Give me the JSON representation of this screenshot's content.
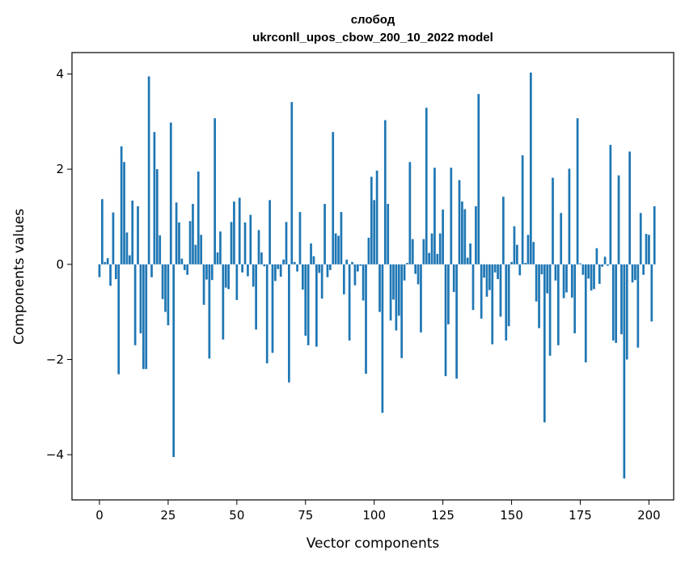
{
  "chart_data": {
    "type": "bar",
    "title": "слобод",
    "subtitle": "ukrconll_upos_cbow_200_10_2022 model",
    "xlabel": "Vector components",
    "ylabel": "Components values",
    "xlim": [
      -10,
      209
    ],
    "ylim": [
      -4.95,
      4.45
    ],
    "xticks": [
      0,
      25,
      50,
      75,
      100,
      125,
      150,
      175,
      200
    ],
    "xtick_labels": [
      "0",
      "25",
      "50",
      "75",
      "100",
      "125",
      "150",
      "175",
      "200"
    ],
    "yticks": [
      -4,
      -2,
      0,
      2,
      4
    ],
    "ytick_labels": [
      "−4",
      "−2",
      "0",
      "2",
      "4"
    ],
    "bar_color": "#1f77b4",
    "grid": false,
    "legend": "none",
    "values": [
      -0.27,
      1.37,
      0.05,
      0.13,
      -0.45,
      1.09,
      -0.31,
      -2.31,
      2.48,
      2.15,
      0.67,
      0.19,
      1.34,
      -1.7,
      1.22,
      -1.45,
      -2.2,
      -2.2,
      3.95,
      -0.27,
      2.78,
      2.0,
      0.61,
      -0.73,
      -1.0,
      -1.28,
      2.98,
      -4.05,
      1.3,
      0.88,
      0.12,
      -0.12,
      -0.22,
      0.91,
      1.27,
      0.41,
      1.95,
      0.62,
      -0.85,
      -0.32,
      -1.98,
      -0.33,
      3.07,
      0.25,
      0.69,
      -1.58,
      -0.49,
      -0.52,
      0.89,
      1.32,
      -0.75,
      1.4,
      -0.17,
      0.88,
      -0.25,
      1.04,
      -0.47,
      -1.37,
      0.72,
      0.25,
      -0.04,
      -2.08,
      1.35,
      -1.86,
      -0.35,
      -0.1,
      -0.26,
      0.1,
      0.89,
      -2.48,
      3.41,
      0.05,
      -0.15,
      1.1,
      -0.53,
      -1.5,
      -1.7,
      0.44,
      0.17,
      -1.73,
      -0.18,
      -0.72,
      1.27,
      -0.27,
      -0.12,
      2.78,
      0.65,
      0.6,
      1.1,
      -0.63,
      0.1,
      -1.6,
      0.05,
      -0.44,
      -0.15,
      -0.03,
      -0.76,
      -2.3,
      0.56,
      1.84,
      1.35,
      1.97,
      -1.0,
      -3.12,
      3.03,
      1.27,
      -1.18,
      -0.74,
      -1.39,
      -1.08,
      -1.97,
      -0.34,
      0.03,
      2.15,
      0.53,
      -0.2,
      -0.42,
      -1.43,
      0.53,
      3.29,
      0.24,
      0.65,
      2.03,
      0.22,
      0.65,
      1.15,
      -2.35,
      -1.26,
      2.03,
      -0.58,
      -2.4,
      1.77,
      1.32,
      1.16,
      0.14,
      0.44,
      -0.96,
      1.22,
      3.58,
      -1.14,
      -0.28,
      -0.68,
      -0.54,
      -1.68,
      -0.17,
      -0.31,
      -1.1,
      1.42,
      -1.6,
      -1.3,
      0.05,
      0.8,
      0.41,
      -0.23,
      2.29,
      0.03,
      0.62,
      4.03,
      0.47,
      -0.78,
      -1.34,
      -0.21,
      -3.32,
      -0.61,
      -1.92,
      1.82,
      -0.34,
      -1.7,
      1.08,
      -0.71,
      -0.59,
      2.01,
      -0.7,
      -1.45,
      3.07,
      0.02,
      -0.22,
      -2.06,
      -0.3,
      -0.55,
      -0.52,
      0.34,
      -0.41,
      -0.05,
      0.16,
      -0.03,
      2.51,
      -1.6,
      -1.65,
      1.87,
      -1.47,
      -4.5,
      -2.0,
      2.37,
      -0.38,
      -0.33,
      -1.75,
      1.08,
      -0.22,
      0.64,
      0.62,
      -1.2,
      1.22
    ]
  }
}
